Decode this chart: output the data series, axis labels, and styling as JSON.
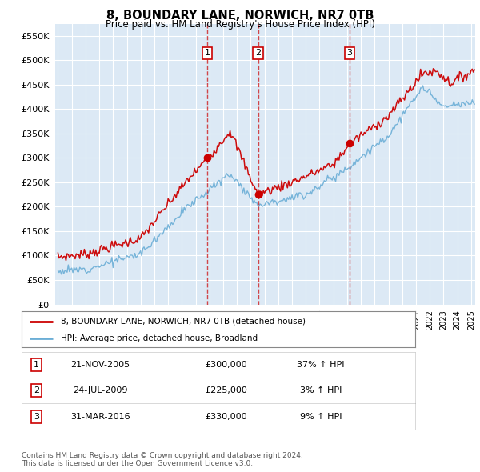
{
  "title": "8, BOUNDARY LANE, NORWICH, NR7 0TB",
  "subtitle": "Price paid vs. HM Land Registry's House Price Index (HPI)",
  "ytick_values": [
    0,
    50000,
    100000,
    150000,
    200000,
    250000,
    300000,
    350000,
    400000,
    450000,
    500000,
    550000
  ],
  "ylim": [
    0,
    575000
  ],
  "bg_color": "#dce9f5",
  "grid_color": "#ffffff",
  "sale_time_floats": [
    2005.833,
    2009.542,
    2016.167
  ],
  "sale_prices": [
    300000,
    225000,
    330000
  ],
  "sale_labels": [
    "1",
    "2",
    "3"
  ],
  "vline_color": "#cc0000",
  "dot_color": "#cc0000",
  "red_line_color": "#cc0000",
  "blue_line_color": "#6baed6",
  "legend_red_label": "8, BOUNDARY LANE, NORWICH, NR7 0TB (detached house)",
  "legend_blue_label": "HPI: Average price, detached house, Broadland",
  "table_rows": [
    [
      "1",
      "21-NOV-2005",
      "£300,000",
      "37% ↑ HPI"
    ],
    [
      "2",
      "24-JUL-2009",
      "£225,000",
      "3% ↑ HPI"
    ],
    [
      "3",
      "31-MAR-2016",
      "£330,000",
      "9% ↑ HPI"
    ]
  ],
  "footnote": "Contains HM Land Registry data © Crown copyright and database right 2024.\nThis data is licensed under the Open Government Licence v3.0.",
  "xmin": 1994.8,
  "xmax": 2025.3
}
